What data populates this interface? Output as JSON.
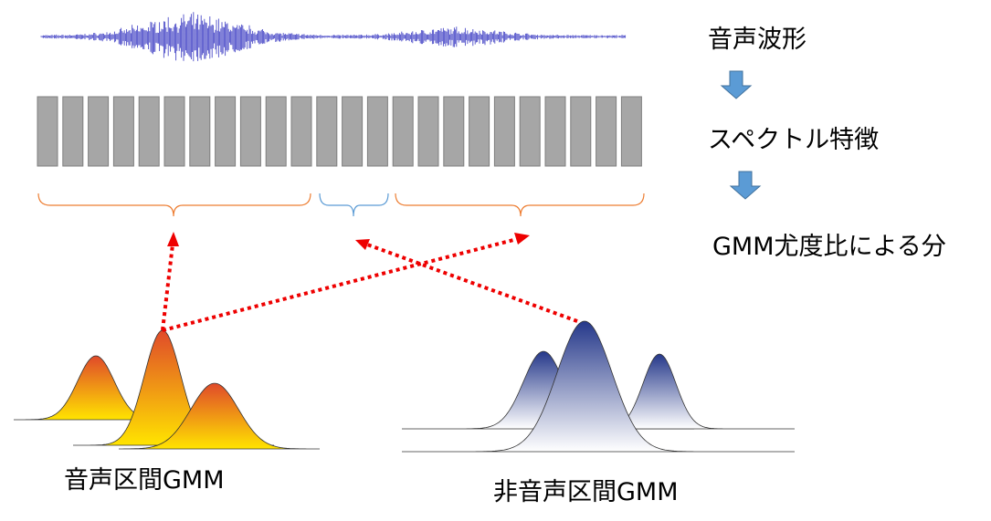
{
  "labels": {
    "waveform": "音声波形",
    "spectral": "スペクトル特徴",
    "classification": "GMM尤度比による分"
  },
  "models": {
    "speech": "音声区間GMM",
    "nonspeech": "非音声区間GMM"
  }
}
